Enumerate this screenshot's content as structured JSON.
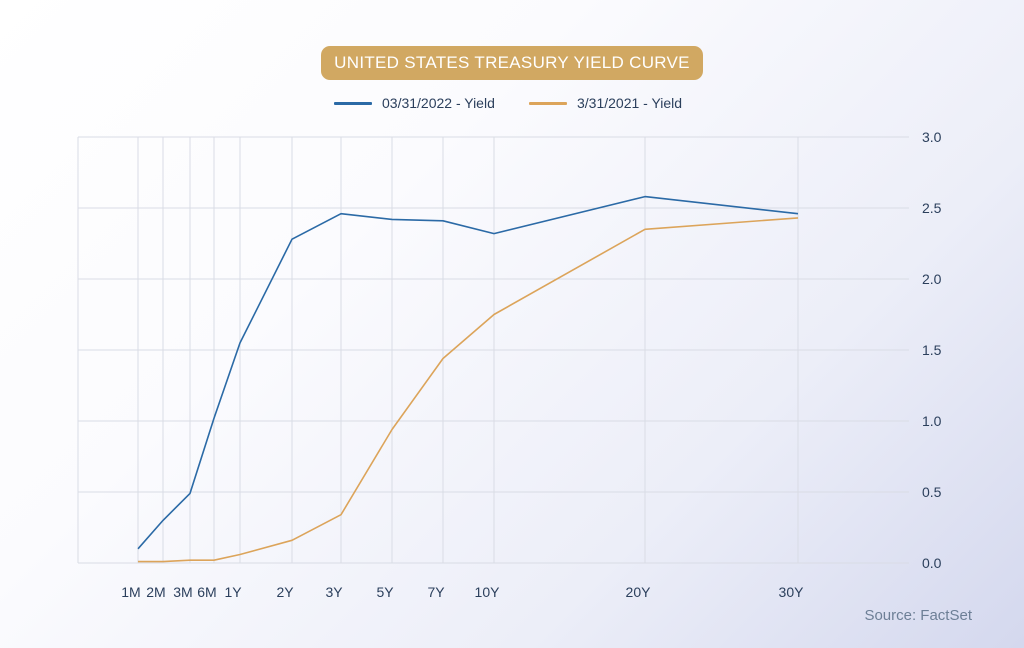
{
  "header": {
    "title": "UNITED STATES TREASURY YIELD CURVE",
    "badge_color": "#d1a862"
  },
  "legend": {
    "items": [
      {
        "label": "03/31/2022 - Yield",
        "color": "#2b6aa6"
      },
      {
        "label": "3/31/2021 - Yield",
        "color": "#dca45a"
      }
    ]
  },
  "footer": {
    "source": "Source: FactSet"
  },
  "chart_data": {
    "type": "line",
    "title": "UNITED STATES TREASURY YIELD CURVE",
    "xlabel": "",
    "ylabel": "",
    "categories": [
      "1M",
      "2M",
      "3M",
      "6M",
      "1Y",
      "2Y",
      "3Y",
      "5Y",
      "7Y",
      "10Y",
      "20Y",
      "30Y"
    ],
    "y_ticks": [
      "3.0",
      "2.5",
      "2.0",
      "1.5",
      "1.0",
      "0.5",
      "0.0"
    ],
    "ylim": [
      0,
      3.0
    ],
    "y_axis_side": "right",
    "grid": true,
    "series": [
      {
        "name": "03/31/2022 - Yield",
        "color": "#2b6aa6",
        "values": [
          0.1,
          0.3,
          0.49,
          1.02,
          1.55,
          2.28,
          2.46,
          2.42,
          2.41,
          2.32,
          2.58,
          2.46
        ]
      },
      {
        "name": "3/31/2021 - Yield",
        "color": "#dca45a",
        "values": [
          0.01,
          0.01,
          0.02,
          0.02,
          0.06,
          0.16,
          0.34,
          0.94,
          1.44,
          1.75,
          2.35,
          2.43
        ]
      }
    ]
  }
}
